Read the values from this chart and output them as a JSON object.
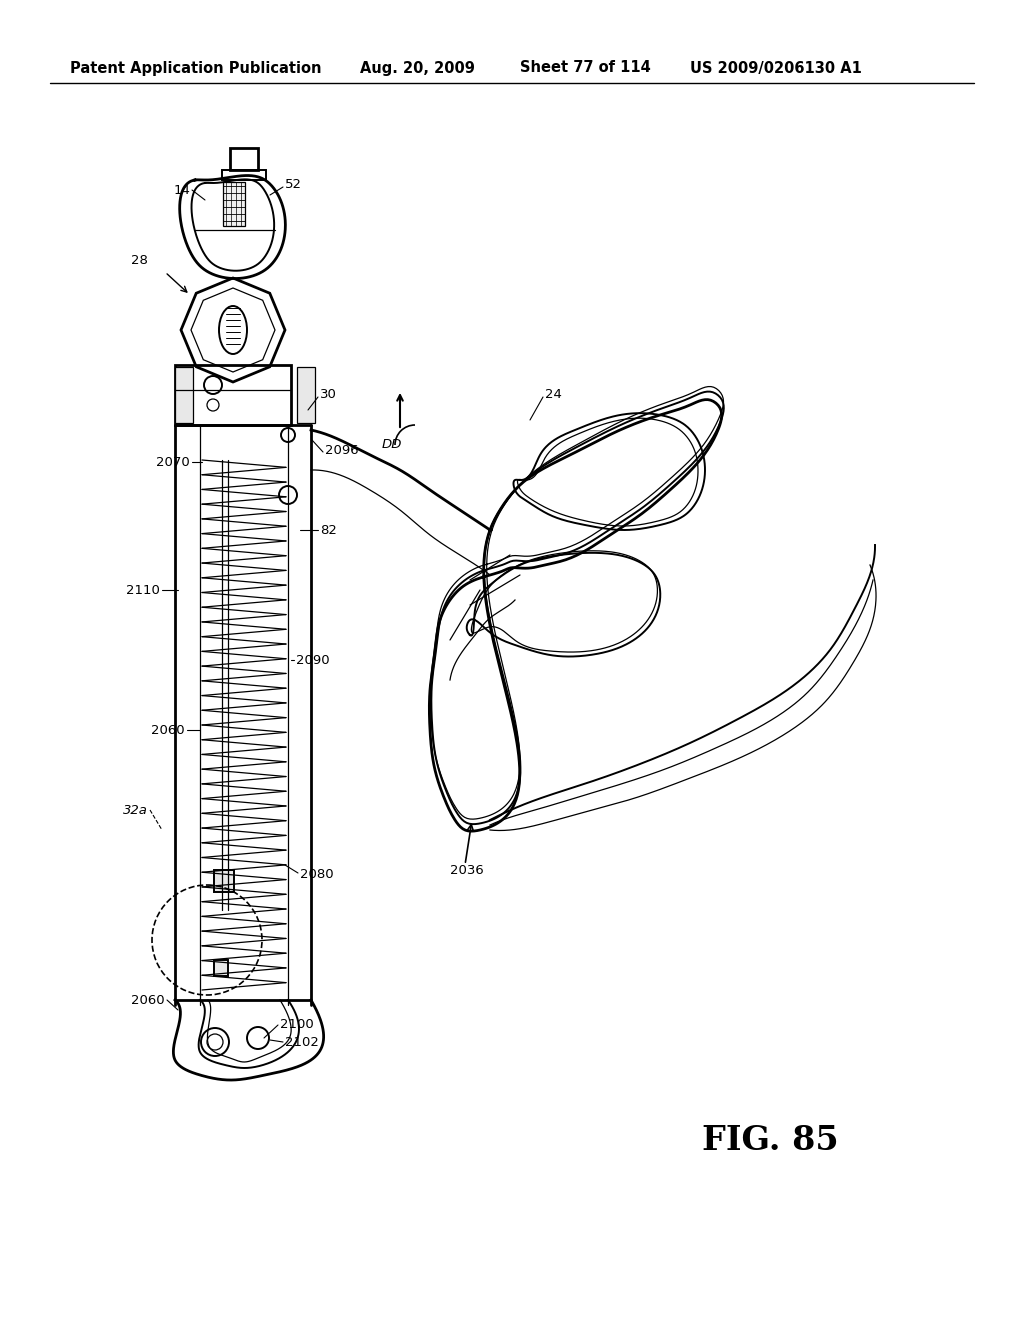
{
  "background_color": "#ffffff",
  "header_text": "Patent Application Publication",
  "header_date": "Aug. 20, 2009",
  "header_sheet": "Sheet 77 of 114",
  "header_patent": "US 2009/0206130 A1",
  "figure_label": "FIG. 85",
  "lw_main": 1.4,
  "lw_thick": 2.0,
  "lw_thin": 0.9
}
